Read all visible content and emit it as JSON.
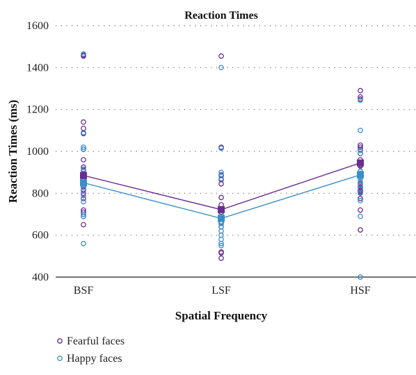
{
  "chart_data": {
    "type": "scatter",
    "title": "Reaction Times",
    "xlabel": "Spatial Frequency",
    "ylabel": "Reaction Times (ms)",
    "categories": [
      "BSF",
      "LSF",
      "HSF"
    ],
    "ylim": [
      400,
      1600
    ],
    "yticks": [
      "400",
      "600",
      "800",
      "1000",
      "1200",
      "1400",
      "1600"
    ],
    "grid": "horizontal dotted",
    "legend_position": "bottom-left",
    "series": [
      {
        "name": "Fearful faces",
        "color": "#6a2d8f",
        "means": [
          885,
          722,
          945
        ],
        "points": [
          [
            1460,
            1455,
            1140,
            1110,
            1085,
            1010,
            960,
            925,
            910,
            895,
            880,
            870,
            860,
            850,
            830,
            815,
            800,
            775,
            720,
            710,
            690,
            650
          ],
          [
            1455,
            1020,
            885,
            865,
            845,
            780,
            745,
            720,
            710,
            680,
            660,
            640,
            520,
            515,
            490
          ],
          [
            1290,
            1260,
            1250,
            1030,
            1020,
            1010,
            990,
            960,
            945,
            935,
            930,
            905,
            880,
            845,
            830,
            815,
            810,
            805,
            775,
            720,
            625
          ]
        ]
      },
      {
        "name": "Happy faces",
        "color": "#3a8ec8",
        "means": [
          850,
          680,
          888
        ],
        "points": [
          [
            1465,
            1090,
            1020,
            1010,
            915,
            880,
            860,
            850,
            840,
            820,
            790,
            760,
            700,
            690,
            560
          ],
          [
            1400,
            1015,
            900,
            890,
            870,
            700,
            680,
            665,
            655,
            640,
            620,
            600,
            580,
            560,
            550
          ],
          [
            1245,
            1100,
            1005,
            990,
            905,
            895,
            890,
            880,
            870,
            855,
            840,
            820,
            800,
            765,
            690,
            400
          ]
        ]
      }
    ]
  }
}
